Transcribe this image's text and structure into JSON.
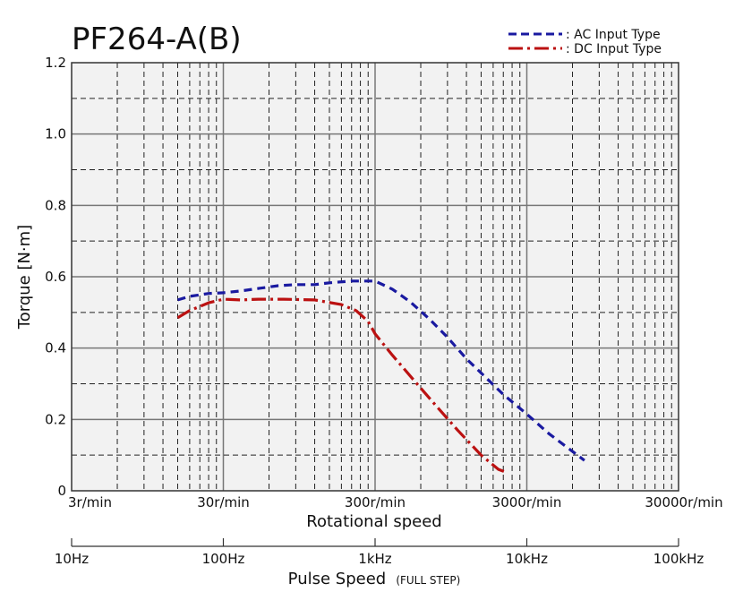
{
  "chart_data": {
    "type": "line",
    "title": "PF264-A(B)",
    "xlabel": "Rotational speed",
    "x2label": "Pulse Speed",
    "x2label_note": "(FULL STEP)",
    "ylabel": "Torque [N·m]",
    "x_scale": "log",
    "xlim_hz": [
      10,
      100000
    ],
    "ylim": [
      0,
      1.2
    ],
    "grid": true,
    "legend_position": "top-right",
    "y_ticks": [
      "0",
      "0.2",
      "0.4",
      "0.6",
      "0.8",
      "1.0",
      "1.2"
    ],
    "x_ticks_rotational": [
      {
        "hz": 10,
        "label": "3r/min"
      },
      {
        "hz": 100,
        "label": "30r/min"
      },
      {
        "hz": 1000,
        "label": "300r/min"
      },
      {
        "hz": 10000,
        "label": "3000r/min"
      },
      {
        "hz": 100000,
        "label": "30000r/min"
      }
    ],
    "x_ticks_pulse": [
      {
        "hz": 10,
        "label": "10Hz"
      },
      {
        "hz": 100,
        "label": "100Hz"
      },
      {
        "hz": 1000,
        "label": "1kHz"
      },
      {
        "hz": 10000,
        "label": "10kHz"
      },
      {
        "hz": 100000,
        "label": "100kHz"
      }
    ],
    "series": [
      {
        "name": ": AC Input Type",
        "color": "#1a1aa0",
        "style": "dashed",
        "points": [
          [
            50,
            0.535
          ],
          [
            60,
            0.545
          ],
          [
            80,
            0.553
          ],
          [
            100,
            0.555
          ],
          [
            130,
            0.56
          ],
          [
            170,
            0.567
          ],
          [
            230,
            0.575
          ],
          [
            300,
            0.578
          ],
          [
            400,
            0.578
          ],
          [
            500,
            0.583
          ],
          [
            700,
            0.588
          ],
          [
            1000,
            0.588
          ],
          [
            1300,
            0.565
          ],
          [
            1700,
            0.53
          ],
          [
            2300,
            0.48
          ],
          [
            3000,
            0.43
          ],
          [
            4000,
            0.37
          ],
          [
            5000,
            0.33
          ],
          [
            7000,
            0.27
          ],
          [
            10000,
            0.215
          ],
          [
            14000,
            0.16
          ],
          [
            18000,
            0.125
          ],
          [
            24000,
            0.085
          ]
        ]
      },
      {
        "name": ": DC Input Type",
        "color": "#bb1111",
        "style": "dash-dot",
        "points": [
          [
            50,
            0.485
          ],
          [
            60,
            0.505
          ],
          [
            80,
            0.527
          ],
          [
            100,
            0.537
          ],
          [
            130,
            0.535
          ],
          [
            170,
            0.537
          ],
          [
            250,
            0.537
          ],
          [
            400,
            0.535
          ],
          [
            600,
            0.522
          ],
          [
            750,
            0.505
          ],
          [
            900,
            0.475
          ],
          [
            1000,
            0.44
          ],
          [
            1300,
            0.38
          ],
          [
            1800,
            0.31
          ],
          [
            2500,
            0.24
          ],
          [
            3500,
            0.17
          ],
          [
            5000,
            0.1
          ],
          [
            6500,
            0.06
          ],
          [
            7500,
            0.05
          ]
        ]
      }
    ]
  }
}
